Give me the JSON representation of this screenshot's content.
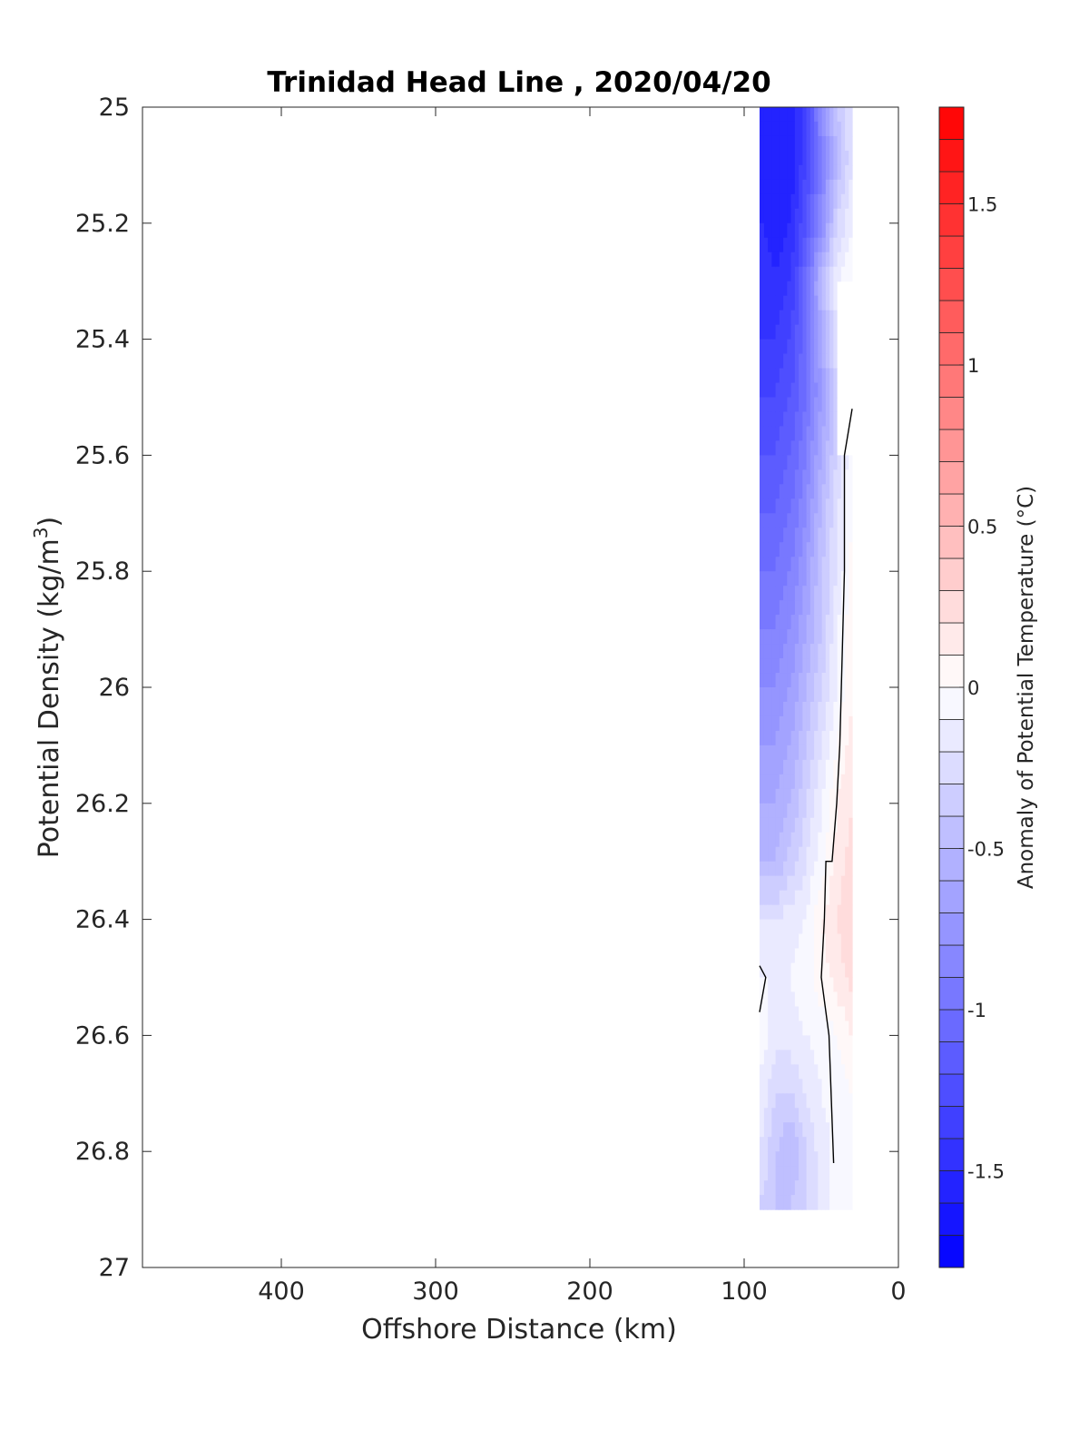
{
  "chart_data": {
    "type": "heatmap",
    "title": "Trinidad Head Line , 2020/04/20",
    "xlabel": "Offshore Distance (km)",
    "ylabel": "Potential Density (kg/m",
    "ylabel_superscript": "3",
    "ylabel_suffix": ")",
    "xlim": [
      490,
      0
    ],
    "ylim": [
      25,
      27
    ],
    "y_reversed": true,
    "x_ticks": [
      400,
      300,
      200,
      100,
      0
    ],
    "y_ticks": [
      25,
      25.2,
      25.4,
      25.6,
      25.8,
      26,
      26.2,
      26.4,
      26.6,
      26.8,
      27
    ],
    "x_tick_labels": [
      "400",
      "300",
      "200",
      "100",
      "0"
    ],
    "y_tick_labels": [
      "25",
      "25.2",
      "25.4",
      "25.6",
      "25.8",
      "26",
      "26.2",
      "26.4",
      "26.6",
      "26.8",
      "27"
    ],
    "colorbar": {
      "label": "Anomaly of Potential Temperature (°C)",
      "range": [
        -1.8,
        1.8
      ],
      "ticks": [
        -1.5,
        -1,
        -0.5,
        0,
        0.5,
        1,
        1.5
      ],
      "tick_labels": [
        "-1.5",
        "-1",
        "-0.5",
        "0",
        "0.5",
        "1",
        "1.5"
      ],
      "step": 0.1,
      "low_color": "#0000ff",
      "mid_color": "#ffffff",
      "high_color": "#ff0000"
    },
    "grid": false,
    "x": [
      30,
      40,
      50,
      60,
      70,
      80,
      90
    ],
    "y": [
      25.0,
      25.1,
      25.2,
      25.3,
      25.4,
      25.5,
      25.6,
      25.7,
      25.8,
      25.9,
      26.0,
      26.1,
      26.2,
      26.3,
      26.4,
      26.5,
      26.6,
      26.7,
      26.8,
      26.9
    ],
    "z": [
      [
        -0.2,
        -0.4,
        -0.8,
        -1.3,
        -1.6,
        -1.6,
        -1.6
      ],
      [
        -0.2,
        -0.5,
        -0.9,
        -1.3,
        -1.6,
        -1.6,
        -1.6
      ],
      [
        -0.1,
        -0.3,
        -0.8,
        -1.2,
        -1.5,
        -1.6,
        -1.5
      ],
      [
        0.0,
        -0.1,
        -0.5,
        -1.0,
        -1.4,
        -1.5,
        -1.4
      ],
      [
        null,
        -0.2,
        -0.6,
        -1.0,
        -1.3,
        -1.4,
        -1.4
      ],
      [
        null,
        -0.3,
        -0.7,
        -1.0,
        -1.2,
        -1.3,
        -1.3
      ],
      [
        0.0,
        -0.3,
        -0.6,
        -0.9,
        -1.1,
        -1.2,
        -1.2
      ],
      [
        0.0,
        -0.2,
        -0.5,
        -0.8,
        -1.0,
        -1.1,
        -1.1
      ],
      [
        0.05,
        -0.2,
        -0.4,
        -0.7,
        -0.9,
        -1.0,
        -1.0
      ],
      [
        0.1,
        -0.1,
        -0.4,
        -0.6,
        -0.8,
        -0.9,
        -0.9
      ],
      [
        0.1,
        -0.1,
        -0.3,
        -0.5,
        -0.7,
        -0.8,
        -0.8
      ],
      [
        0.15,
        0.0,
        -0.2,
        -0.4,
        -0.6,
        -0.7,
        -0.7
      ],
      [
        0.2,
        0.1,
        -0.1,
        -0.3,
        -0.5,
        -0.6,
        -0.6
      ],
      [
        0.25,
        0.15,
        -0.05,
        -0.2,
        -0.35,
        -0.5,
        -0.5
      ],
      [
        0.3,
        0.2,
        0.1,
        -0.1,
        -0.15,
        -0.2,
        -0.2
      ],
      [
        0.25,
        0.15,
        0.05,
        -0.05,
        -0.1,
        -0.1,
        -0.1
      ],
      [
        0.1,
        0.0,
        -0.05,
        -0.1,
        -0.15,
        -0.15,
        -0.05
      ],
      [
        0.0,
        -0.05,
        -0.1,
        -0.2,
        -0.3,
        -0.3,
        -0.1
      ],
      [
        0.0,
        -0.05,
        -0.15,
        -0.3,
        -0.5,
        -0.4,
        -0.2
      ],
      [
        0.0,
        -0.05,
        -0.15,
        -0.3,
        -0.4,
        -0.4,
        -0.3
      ]
    ],
    "zero_contours": [
      {
        "x": [
          30,
          35,
          35,
          37,
          38,
          40,
          43,
          47,
          48,
          50,
          45,
          42
        ],
        "y": [
          25.52,
          25.6,
          25.8,
          26.0,
          26.1,
          26.2,
          26.3,
          26.3,
          26.4,
          26.5,
          26.6,
          26.82
        ]
      },
      {
        "x": [
          90,
          86,
          90
        ],
        "y": [
          26.48,
          26.5,
          26.56
        ]
      }
    ]
  }
}
